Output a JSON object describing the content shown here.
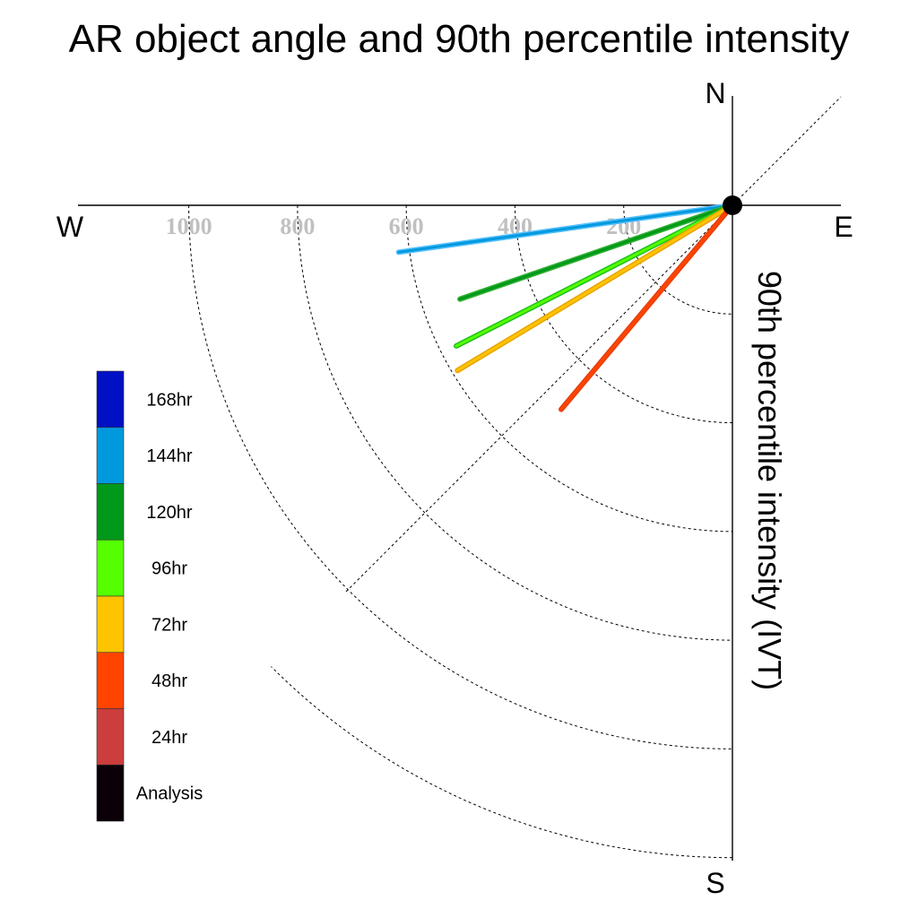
{
  "chart_data": {
    "type": "polar",
    "title": "AR object angle and 90th percentile intensity",
    "axis_label": "90th percentile intensity (IVT)",
    "directions": {
      "north": "N",
      "south": "S",
      "east": "E",
      "west": "W"
    },
    "radial_ticks": [
      200,
      400,
      600,
      800,
      1000
    ],
    "radial_tick_labels": [
      "200",
      "400",
      "600",
      "800",
      "1000"
    ],
    "rmax": 1200,
    "grid": true,
    "legend_placement": "left",
    "legend": [
      {
        "label": "168hr",
        "color": "#0010c4"
      },
      {
        "label": "144hr",
        "color": "#0099dd"
      },
      {
        "label": "120hr",
        "color": "#00991a"
      },
      {
        "label": "96hr",
        "color": "#55ff00"
      },
      {
        "label": "72hr",
        "color": "#ffc400"
      },
      {
        "label": "48hr",
        "color": "#ff4400"
      },
      {
        "label": "24hr",
        "color": "#cc3d3d"
      },
      {
        "label": "Analysis",
        "color": "#0c0008"
      }
    ],
    "series": [
      {
        "name": "144hr",
        "color": "#0099dd",
        "edge": "#55c0ff",
        "angle_deg_below_west": 8,
        "intensity": 620
      },
      {
        "name": "120hr",
        "color": "#00991a",
        "edge": "#2fb030",
        "angle_deg_below_west": 19,
        "intensity": 530
      },
      {
        "name": "96hr",
        "color": "#55ff00",
        "edge": "#1fbf1f",
        "angle_deg_below_west": 27,
        "intensity": 570
      },
      {
        "name": "72hr",
        "color": "#ffc400",
        "edge": "#e8a300",
        "angle_deg_below_west": 31,
        "intensity": 590
      },
      {
        "name": "48hr",
        "color": "#ff4400",
        "edge": "#e64010",
        "angle_deg_below_west": 50,
        "intensity": 490
      }
    ]
  }
}
